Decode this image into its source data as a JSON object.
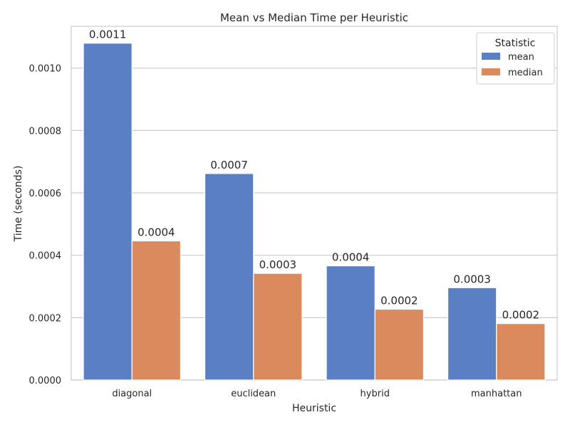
{
  "chart_data": {
    "type": "bar",
    "title": "Mean vs Median Time per Heuristic",
    "xlabel": "Heuristic",
    "ylabel": "Time (seconds)",
    "categories": [
      "diagonal",
      "euclidean",
      "hybrid",
      "manhattan"
    ],
    "series": [
      {
        "name": "mean",
        "values": [
          0.00108,
          0.000662,
          0.000366,
          0.000296
        ],
        "labels": [
          "0.0011",
          "0.0007",
          "0.0004",
          "0.0003"
        ],
        "color": "#5a7fc4"
      },
      {
        "name": "median",
        "values": [
          0.000446,
          0.000342,
          0.000227,
          0.000181
        ],
        "labels": [
          "0.0004",
          "0.0003",
          "0.0002",
          "0.0002"
        ],
        "color": "#db8a5e"
      }
    ],
    "ylim": [
      0,
      0.001134
    ],
    "yticks": [
      0,
      0.0002,
      0.0004,
      0.0006,
      0.0008,
      0.001
    ],
    "ytick_labels": [
      "0.0000",
      "0.0002",
      "0.0004",
      "0.0006",
      "0.0008",
      "0.0010"
    ],
    "grid": true,
    "legend": {
      "title": "Statistic",
      "position": "top-right"
    }
  }
}
